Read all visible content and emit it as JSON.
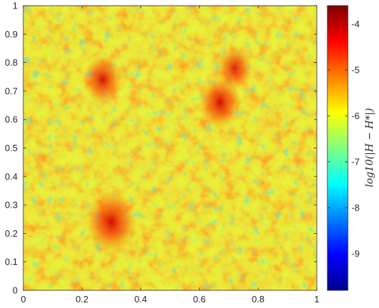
{
  "chart_data": {
    "type": "heatmap",
    "title": "",
    "xlabel": "",
    "ylabel": "",
    "xlim": [
      0,
      1
    ],
    "ylim": [
      0,
      1
    ],
    "x_ticks": [
      "0",
      "0.2",
      "0.4",
      "0.6",
      "0.8",
      "1"
    ],
    "y_ticks": [
      "0",
      "0.1",
      "0.2",
      "0.3",
      "0.4",
      "0.5",
      "0.6",
      "0.7",
      "0.8",
      "0.9",
      "1"
    ],
    "colormap": "jet",
    "colorbar": {
      "label": "log10(|H − H*|)",
      "range": [
        -9.8,
        -3.6
      ],
      "ticks": [
        "-4",
        "-5",
        "-6",
        "-7",
        "-8",
        "-9"
      ]
    },
    "field_summary": {
      "background_level": -6.2,
      "hotspots": [
        {
          "x": 0.3,
          "y": 0.24,
          "value": -4.3
        },
        {
          "x": 0.67,
          "y": 0.66,
          "value": -4.8
        },
        {
          "x": 0.27,
          "y": 0.74,
          "value": -5.0
        },
        {
          "x": 0.72,
          "y": 0.78,
          "value": -5.2
        }
      ]
    }
  }
}
